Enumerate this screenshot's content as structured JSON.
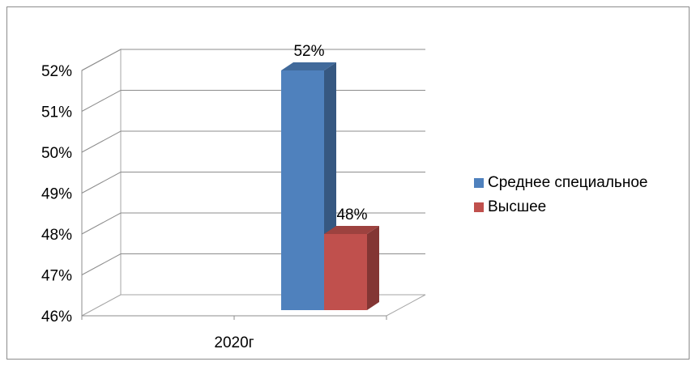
{
  "chart_data": {
    "type": "bar",
    "style": "3d-clustered-column",
    "categories": [
      "2020г"
    ],
    "series": [
      {
        "name": "Среднее специальное",
        "values": [
          52
        ],
        "color": "#4F81BD",
        "data_label": "52%"
      },
      {
        "name": "Высшее",
        "values": [
          48
        ],
        "color": "#C0504D",
        "data_label": "48%"
      }
    ],
    "y_ticks": [
      "46%",
      "47%",
      "48%",
      "49%",
      "50%",
      "51%",
      "52%"
    ],
    "ylim": [
      46,
      52
    ],
    "grid": true,
    "legend_position": "right"
  }
}
